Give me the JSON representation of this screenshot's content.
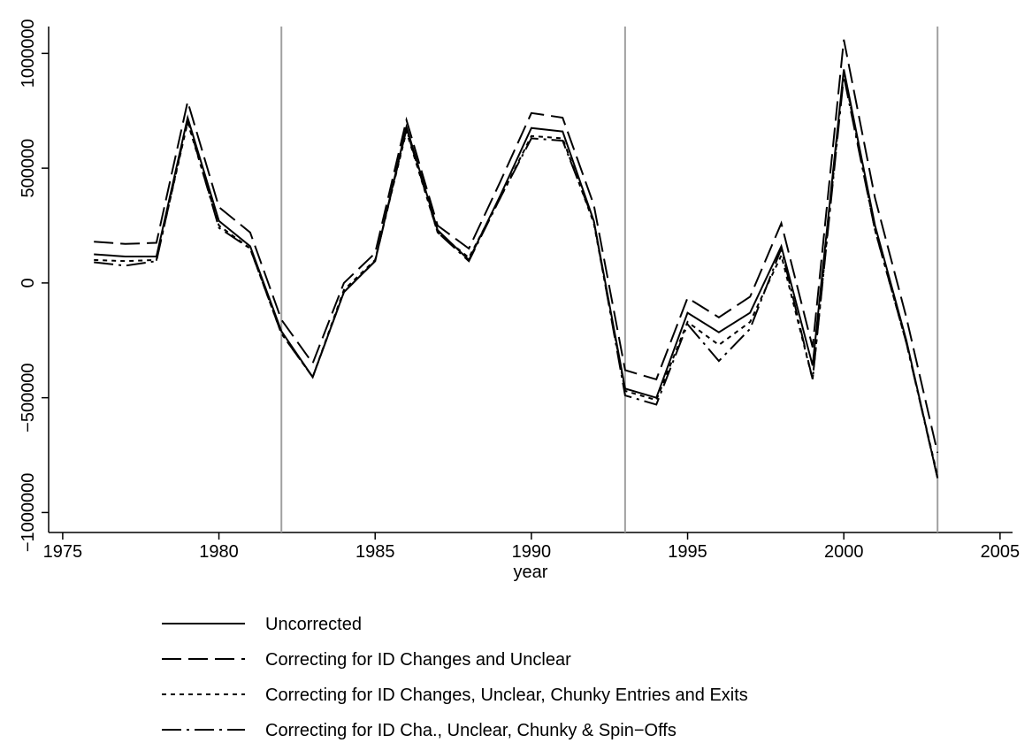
{
  "chart_data": {
    "type": "line",
    "x_label": "year",
    "x": [
      1976,
      1977,
      1978,
      1979,
      1980,
      1981,
      1982,
      1983,
      1984,
      1985,
      1986,
      1987,
      1988,
      1989,
      1990,
      1991,
      1992,
      1993,
      1994,
      1995,
      1996,
      1997,
      1998,
      1999,
      2000,
      2001,
      2002,
      2003
    ],
    "series": [
      {
        "name": "Uncorrected",
        "color": "#000000",
        "dash": "solid",
        "values": [
          125000,
          115000,
          115000,
          720000,
          270000,
          160000,
          -210000,
          -410000,
          -40000,
          95000,
          680000,
          230000,
          100000,
          380000,
          675000,
          660000,
          270000,
          -460000,
          -500000,
          -130000,
          -215000,
          -130000,
          160000,
          -360000,
          930000,
          250000,
          -250000,
          -850000
        ]
      },
      {
        "name": "Correcting for ID Changes and Unclear",
        "color": "#000000",
        "dash": "dash",
        "values": [
          180000,
          170000,
          175000,
          790000,
          330000,
          220000,
          -160000,
          -350000,
          0,
          130000,
          710000,
          250000,
          150000,
          440000,
          740000,
          720000,
          340000,
          -380000,
          -420000,
          -65000,
          -150000,
          -60000,
          260000,
          -280000,
          1060000,
          370000,
          -150000,
          -740000
        ]
      },
      {
        "name": "Correcting for ID Changes, Unclear, Chunky Entries and Exits",
        "color": "#000000",
        "dash": "dot",
        "values": [
          100000,
          95000,
          100000,
          700000,
          250000,
          150000,
          -220000,
          -410000,
          -30000,
          100000,
          660000,
          220000,
          110000,
          370000,
          640000,
          630000,
          260000,
          -470000,
          -510000,
          -170000,
          -270000,
          -170000,
          120000,
          -420000,
          920000,
          230000,
          -260000,
          -840000
        ]
      },
      {
        "name": "Correcting for ID Cha., Unclear, Chunky & Spin−Offs",
        "color": "#000000",
        "dash": "dashdot",
        "values": [
          90000,
          75000,
          95000,
          710000,
          240000,
          150000,
          -220000,
          -410000,
          -40000,
          95000,
          670000,
          220000,
          95000,
          370000,
          630000,
          620000,
          270000,
          -490000,
          -530000,
          -180000,
          -340000,
          -200000,
          150000,
          -420000,
          900000,
          230000,
          -260000,
          -850000
        ]
      }
    ],
    "xlim": [
      1974.55,
      2005.4
    ],
    "xticks": [
      1975,
      1980,
      1985,
      1990,
      1995,
      2000,
      2005
    ],
    "ylim": [
      -1087000,
      1117000
    ],
    "yticks": [
      {
        "value": -1000000,
        "label": "−1000000"
      },
      {
        "value": -500000,
        "label": "−500000"
      },
      0,
      500000,
      1000000
    ],
    "vlines": [
      1982,
      1993,
      2003
    ],
    "vline_color": "#a0a0a0",
    "legend": "bottom"
  }
}
